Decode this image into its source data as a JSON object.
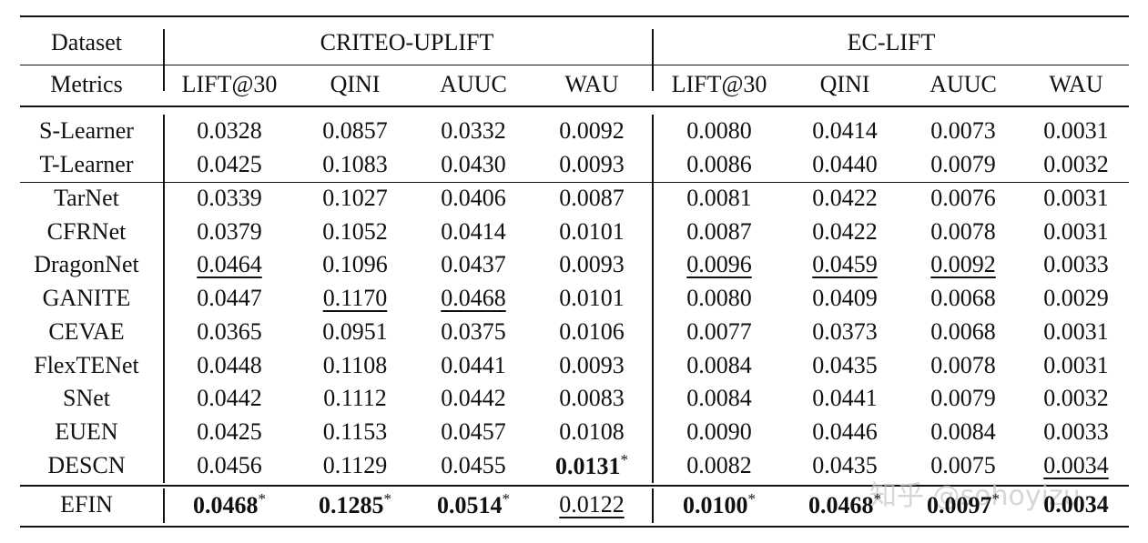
{
  "header": {
    "dataset_label": "Dataset",
    "metrics_label": "Metrics",
    "groups": [
      {
        "name": "CRITEO-UPLIFT",
        "metrics": [
          "LIFT@30",
          "QINI",
          "AUUC",
          "WAU"
        ]
      },
      {
        "name": "EC-LIFT",
        "metrics": [
          "LIFT@30",
          "QINI",
          "AUUC",
          "WAU"
        ]
      }
    ]
  },
  "sections": [
    {
      "rows": [
        {
          "method": "S-Learner",
          "cells": [
            {
              "text": "0.0328"
            },
            {
              "text": "0.0857"
            },
            {
              "text": "0.0332"
            },
            {
              "text": "0.0092"
            },
            {
              "text": "0.0080"
            },
            {
              "text": "0.0414"
            },
            {
              "text": "0.0073"
            },
            {
              "text": "0.0031"
            }
          ]
        },
        {
          "method": "T-Learner",
          "cells": [
            {
              "text": "0.0425"
            },
            {
              "text": "0.1083"
            },
            {
              "text": "0.0430"
            },
            {
              "text": "0.0093"
            },
            {
              "text": "0.0086"
            },
            {
              "text": "0.0440"
            },
            {
              "text": "0.0079"
            },
            {
              "text": "0.0032"
            }
          ]
        }
      ]
    },
    {
      "rows": [
        {
          "method": "TarNet",
          "cells": [
            {
              "text": "0.0339"
            },
            {
              "text": "0.1027"
            },
            {
              "text": "0.0406"
            },
            {
              "text": "0.0087"
            },
            {
              "text": "0.0081"
            },
            {
              "text": "0.0422"
            },
            {
              "text": "0.0076"
            },
            {
              "text": "0.0031"
            }
          ]
        },
        {
          "method": "CFRNet",
          "cells": [
            {
              "text": "0.0379"
            },
            {
              "text": "0.1052"
            },
            {
              "text": "0.0414"
            },
            {
              "text": "0.0101"
            },
            {
              "text": "0.0087"
            },
            {
              "text": "0.0422"
            },
            {
              "text": "0.0078"
            },
            {
              "text": "0.0031"
            }
          ]
        },
        {
          "method": "DragonNet",
          "cells": [
            {
              "text": "0.0464",
              "underline": true
            },
            {
              "text": "0.1096"
            },
            {
              "text": "0.0437"
            },
            {
              "text": "0.0093"
            },
            {
              "text": "0.0096",
              "underline": true
            },
            {
              "text": "0.0459",
              "underline": true
            },
            {
              "text": "0.0092",
              "underline": true
            },
            {
              "text": "0.0033"
            }
          ]
        },
        {
          "method": "GANITE",
          "cells": [
            {
              "text": "0.0447"
            },
            {
              "text": "0.1170",
              "underline": true
            },
            {
              "text": "0.0468",
              "underline": true
            },
            {
              "text": "0.0101"
            },
            {
              "text": "0.0080"
            },
            {
              "text": "0.0409"
            },
            {
              "text": "0.0068"
            },
            {
              "text": "0.0029"
            }
          ]
        },
        {
          "method": "CEVAE",
          "cells": [
            {
              "text": "0.0365"
            },
            {
              "text": "0.0951"
            },
            {
              "text": "0.0375"
            },
            {
              "text": "0.0106"
            },
            {
              "text": "0.0077"
            },
            {
              "text": "0.0373"
            },
            {
              "text": "0.0068"
            },
            {
              "text": "0.0031"
            }
          ]
        },
        {
          "method": "FlexTENet",
          "cells": [
            {
              "text": "0.0448"
            },
            {
              "text": "0.1108"
            },
            {
              "text": "0.0441"
            },
            {
              "text": "0.0093"
            },
            {
              "text": "0.0084"
            },
            {
              "text": "0.0435"
            },
            {
              "text": "0.0078"
            },
            {
              "text": "0.0031"
            }
          ]
        },
        {
          "method": "SNet",
          "cells": [
            {
              "text": "0.0442"
            },
            {
              "text": "0.1112"
            },
            {
              "text": "0.0442"
            },
            {
              "text": "0.0083"
            },
            {
              "text": "0.0084"
            },
            {
              "text": "0.0441"
            },
            {
              "text": "0.0079"
            },
            {
              "text": "0.0032"
            }
          ]
        },
        {
          "method": "EUEN",
          "cells": [
            {
              "text": "0.0425"
            },
            {
              "text": "0.1153"
            },
            {
              "text": "0.0457"
            },
            {
              "text": "0.0108"
            },
            {
              "text": "0.0090"
            },
            {
              "text": "0.0446"
            },
            {
              "text": "0.0084"
            },
            {
              "text": "0.0033"
            }
          ]
        },
        {
          "method": "DESCN",
          "cells": [
            {
              "text": "0.0456"
            },
            {
              "text": "0.1129"
            },
            {
              "text": "0.0455"
            },
            {
              "text": "0.0131",
              "bold": true,
              "sup": "*"
            },
            {
              "text": "0.0082"
            },
            {
              "text": "0.0435"
            },
            {
              "text": "0.0075"
            },
            {
              "text": "0.0034",
              "underline": true
            }
          ]
        }
      ]
    },
    {
      "rows": [
        {
          "method": "EFIN",
          "cells": [
            {
              "text": "0.0468",
              "bold": true,
              "sup": "*"
            },
            {
              "text": "0.1285",
              "bold": true,
              "sup": "*"
            },
            {
              "text": "0.0514",
              "bold": true,
              "sup": "*"
            },
            {
              "text": "0.0122",
              "underline": true
            },
            {
              "text": "0.0100",
              "bold": true,
              "sup": "*"
            },
            {
              "text": "0.0468",
              "bold": true,
              "sup": "*"
            },
            {
              "text": "0.0097",
              "bold": true,
              "sup": "*"
            },
            {
              "text": "0.0034",
              "bold": true
            }
          ]
        }
      ]
    }
  ],
  "watermark": "知乎 @sohoyizu"
}
